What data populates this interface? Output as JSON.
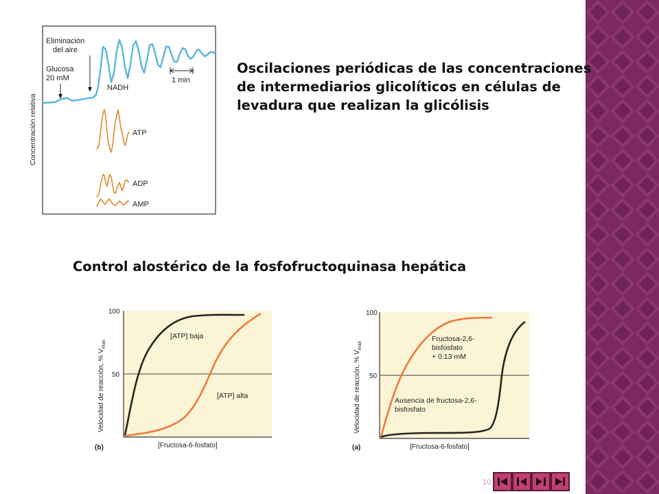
{
  "slide": {
    "title_oscillations": "Oscilaciones periódicas de las concentraciones de intermediarios glicolíticos en células de levadura que realizan la glicólisis",
    "title_allosteric": "Control alostérico de la fosfofructoquinasa hepática",
    "page_number": "10"
  },
  "oscillation_figure": {
    "ylabel": "Concentración relativa",
    "annotation_air": "Eliminación del aire",
    "annotation_air_l1": "Eliminación",
    "annotation_air_l2": "del aire",
    "annotation_glucose_l1": "Glucosa",
    "annotation_glucose_l2": "20 mM",
    "scale_label": "1 min",
    "series_labels": {
      "nadh": "NADH",
      "atp": "ATP",
      "adp": "ADP",
      "amp": "AMP"
    },
    "colors": {
      "nadh": "#5ab4e0",
      "atp": "#e08a2a",
      "adp": "#e08a2a",
      "amp": "#e08a2a",
      "frame": "#333333"
    }
  },
  "pfk_figure_b": {
    "panel_label": "(b)",
    "xlabel": "[Fructosa-6-fosfato]",
    "ylabel": "Velocidad de reacción, % Vmax",
    "ylabel_main": "Velocidad de reacción, % V",
    "ylabel_sub": "max",
    "tick_100": "100",
    "tick_50": "50",
    "curve_low_label": "[ATP] baja",
    "curve_high_label": "[ATP] alta",
    "colors": {
      "low": "#2a2320",
      "high": "#f07838",
      "bg": "#fbf4d6"
    }
  },
  "pfk_figure_a": {
    "panel_label": "(a)",
    "xlabel": "[Fructosa-6-fosfato]",
    "ylabel_main": "Velocidad de reacción, % V",
    "ylabel_sub": "max",
    "tick_100": "100",
    "tick_50": "50",
    "curve_with_l1": "Fructosa-2,6-",
    "curve_with_l2": "bisfosfato",
    "curve_with_l3": "+ 0.13 mM",
    "curve_without_l1": "Ausencia de fructosa-2,6-",
    "curve_without_l2": "bisfosfato",
    "colors": {
      "with": "#f07838",
      "without": "#2a2320",
      "bg": "#fbf4d6"
    }
  },
  "theme": {
    "side_band": "#7a2a60",
    "nav_button": "#c0406e",
    "nav_border": "#5a1a3d"
  },
  "navigation": [
    {
      "name": "first-slide",
      "icon": "skip-back-icon"
    },
    {
      "name": "previous-slide",
      "icon": "play-back-icon"
    },
    {
      "name": "next-slide",
      "icon": "play-forward-icon"
    },
    {
      "name": "last-slide",
      "icon": "skip-forward-icon"
    }
  ]
}
